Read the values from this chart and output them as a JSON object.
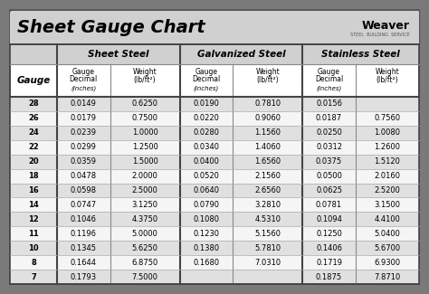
{
  "title": "Sheet Gauge Chart",
  "bg_outer": "#7a7a7a",
  "bg_inner": "#ffffff",
  "header_bg": "#d0d0d0",
  "row_bg_odd": "#e0e0e0",
  "row_bg_even": "#f5f5f5",
  "gauges": [
    28,
    26,
    24,
    22,
    20,
    18,
    16,
    14,
    12,
    11,
    10,
    8,
    7
  ],
  "sheet_steel_dec": [
    "0.0149",
    "0.0179",
    "0.0239",
    "0.0299",
    "0.0359",
    "0.0478",
    "0.0598",
    "0.0747",
    "0.1046",
    "0.1196",
    "0.1345",
    "0.1644",
    "0.1793"
  ],
  "sheet_steel_wt": [
    "0.6250",
    "0.7500",
    "1.0000",
    "1.2500",
    "1.5000",
    "2.0000",
    "2.5000",
    "3.1250",
    "4.3750",
    "5.0000",
    "5.6250",
    "6.8750",
    "7.5000"
  ],
  "galv_dec": [
    "0.0190",
    "0.0220",
    "0.0280",
    "0.0340",
    "0.0400",
    "0.0520",
    "0.0640",
    "0.0790",
    "0.1080",
    "0.1230",
    "0.1380",
    "0.1680",
    ""
  ],
  "galv_wt": [
    "0.7810",
    "0.9060",
    "1.1560",
    "1.4060",
    "1.6560",
    "2.1560",
    "2.6560",
    "3.2810",
    "4.5310",
    "5.1560",
    "5.7810",
    "7.0310",
    ""
  ],
  "stain_dec": [
    "0.0156",
    "0.0187",
    "0.0250",
    "0.0312",
    "0.0375",
    "0.0500",
    "0.0625",
    "0.0781",
    "0.1094",
    "0.1250",
    "0.1406",
    "0.1719",
    "0.1875"
  ],
  "stain_wt": [
    "",
    "0.7560",
    "1.0080",
    "1.2600",
    "1.5120",
    "2.0160",
    "2.5200",
    "3.1500",
    "4.4100",
    "5.0400",
    "5.6700",
    "6.9300",
    "7.8710"
  ]
}
